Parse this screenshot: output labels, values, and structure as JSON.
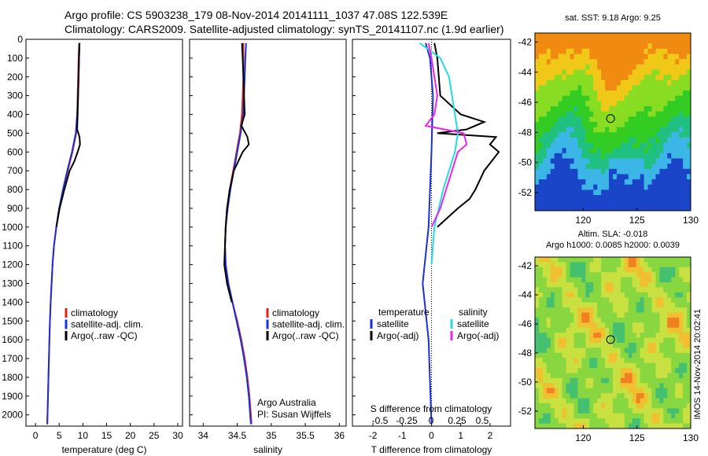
{
  "header": {
    "line1": "Argo profile: CS 5903238_179 08-Nov-2014 20141111_1037 47.08S 122.539E",
    "line2": "Climatology: CARS2009. Satellite-adjusted climatology: synTS_20141107.nc (1.9d earlier)"
  },
  "colors": {
    "climatology": "#e02020",
    "satellite": "#1a2fd6",
    "argo": "#000000",
    "sal_sat": "#22dddd",
    "sal_argo": "#ee22ee"
  },
  "chart_data": [
    {
      "type": "line",
      "xlabel": "temperature (deg C)",
      "ylim": [
        2060,
        0
      ],
      "xlim": [
        -2,
        31
      ],
      "xticks": [
        0,
        5,
        10,
        15,
        20,
        25,
        30
      ],
      "yticks": [
        0,
        100,
        200,
        300,
        400,
        500,
        600,
        700,
        800,
        900,
        1000,
        1100,
        1200,
        1300,
        1400,
        1500,
        1600,
        1700,
        1800,
        1900,
        2000
      ],
      "legend": [
        "climatology",
        "satellite-adj. clim.",
        "Argo(..raw -QC)"
      ],
      "series": [
        {
          "name": "climatology",
          "color": "#e02020",
          "depth": [
            20,
            100,
            200,
            300,
            400,
            500,
            600,
            700,
            800,
            900,
            1000,
            1100,
            1200,
            1300,
            1400,
            1500,
            1600,
            1700,
            1800,
            1900,
            2000,
            2050
          ],
          "values": [
            9.2,
            9.1,
            9.0,
            8.9,
            8.8,
            8.6,
            7.8,
            6.8,
            5.9,
            5.0,
            4.4,
            3.9,
            3.6,
            3.4,
            3.2,
            3.05,
            2.95,
            2.85,
            2.75,
            2.65,
            2.55,
            2.5
          ]
        },
        {
          "name": "satellite-adj. clim.",
          "color": "#1a2fd6",
          "depth": [
            20,
            100,
            200,
            300,
            400,
            500,
            600,
            700,
            800,
            900,
            1000,
            1100,
            1200,
            1300,
            1400,
            1500,
            1600,
            1700,
            1800,
            1900,
            2000,
            2050
          ],
          "values": [
            9.3,
            9.2,
            9.1,
            9.0,
            8.8,
            8.5,
            7.7,
            6.7,
            5.8,
            5.0,
            4.4,
            3.9,
            3.6,
            3.4,
            3.2,
            3.05,
            2.95,
            2.85,
            2.75,
            2.65,
            2.55,
            2.5
          ]
        },
        {
          "name": "Argo(..raw -QC)",
          "color": "#000000",
          "depth": [
            20,
            100,
            200,
            300,
            400,
            480,
            520,
            560,
            600,
            650,
            700,
            800,
            900,
            1000
          ],
          "values": [
            9.3,
            9.2,
            9.1,
            9.0,
            8.9,
            8.8,
            9.3,
            9.4,
            8.9,
            8.2,
            7.2,
            6.1,
            5.1,
            4.4
          ]
        }
      ]
    },
    {
      "type": "line",
      "xlabel": "salinity",
      "ylim": [
        2060,
        0
      ],
      "xlim": [
        33.8,
        36.1
      ],
      "xticks": [
        34,
        34.5,
        35,
        35.5,
        36
      ],
      "legend": [
        "climatology",
        "satellite-adj. clim.",
        "Argo(..raw -QC)"
      ],
      "annotation": [
        "Argo Australia",
        "PI: Susan Wijffels"
      ],
      "series": [
        {
          "name": "climatology",
          "color": "#e02020",
          "depth": [
            20,
            100,
            200,
            300,
            400,
            500,
            600,
            700,
            800,
            900,
            1000,
            1100,
            1200,
            1300,
            1400,
            1500,
            1600,
            1700,
            1800,
            1900,
            2000,
            2050
          ],
          "values": [
            34.59,
            34.59,
            34.59,
            34.58,
            34.57,
            34.54,
            34.49,
            34.44,
            34.39,
            34.35,
            34.33,
            34.32,
            34.33,
            34.37,
            34.43,
            34.5,
            34.56,
            34.61,
            34.65,
            34.68,
            34.7,
            34.71
          ]
        },
        {
          "name": "satellite-adj. clim.",
          "color": "#1a2fd6",
          "depth": [
            20,
            100,
            200,
            300,
            400,
            500,
            600,
            700,
            800,
            900,
            1000,
            1100,
            1200,
            1300,
            1400,
            1500,
            1600,
            1700,
            1800,
            1900,
            2000,
            2050
          ],
          "values": [
            34.63,
            34.62,
            34.61,
            34.6,
            34.59,
            34.55,
            34.5,
            34.45,
            34.4,
            34.36,
            34.33,
            34.32,
            34.33,
            34.37,
            34.43,
            34.49,
            34.55,
            34.6,
            34.64,
            34.67,
            34.69,
            34.7
          ]
        },
        {
          "name": "Argo(..raw -QC)",
          "color": "#000000",
          "depth": [
            20,
            100,
            200,
            300,
            400,
            460,
            520,
            560,
            600,
            700,
            800,
            900,
            1000,
            1200,
            1300,
            1400
          ],
          "values": [
            34.57,
            34.58,
            34.59,
            34.6,
            34.61,
            34.56,
            34.65,
            34.67,
            34.58,
            34.45,
            34.39,
            34.35,
            34.33,
            34.31,
            34.35,
            34.42
          ]
        }
      ]
    },
    {
      "type": "line",
      "xlabel": "T difference from climatology",
      "toplabel": "S difference from climatology",
      "ylim": [
        2060,
        0
      ],
      "xlim": [
        -2.7,
        2.7
      ],
      "xticks": [
        -2,
        -1,
        0,
        1,
        2
      ],
      "xticks_top": [
        "-0.5",
        "-0.25",
        "0",
        "0.25",
        "0.5"
      ],
      "legend_temperature": [
        "temperature",
        "satellite",
        "Argo(-adj)"
      ],
      "legend_salinity": [
        "salinity",
        "satellite",
        "Argo(-adj)"
      ],
      "series": [
        {
          "name": "satellite",
          "color": "#1a2fd6",
          "depth": [
            20,
            100,
            300,
            600,
            1000,
            1300,
            1600,
            2050
          ],
          "values": [
            -0.2,
            -0.05,
            0.05,
            0.0,
            -0.1,
            -0.3,
            -0.1,
            0.0
          ]
        },
        {
          "name": "Argo(-adj)",
          "color": "#000000",
          "depth": [
            20,
            100,
            300,
            400,
            440,
            480,
            500,
            520,
            560,
            600,
            700,
            800,
            850,
            900,
            1000
          ],
          "values": [
            0.1,
            0.2,
            0.3,
            1.0,
            1.8,
            1.2,
            0.2,
            2.2,
            2.0,
            2.3,
            1.8,
            1.5,
            1.3,
            0.9,
            0.2
          ]
        },
        {
          "name": "satellite",
          "color": "#22dddd",
          "depth": [
            20,
            100,
            200,
            300,
            400,
            500,
            600,
            700,
            800,
            1000,
            1200
          ],
          "values": [
            -0.4,
            0.3,
            0.6,
            0.7,
            0.8,
            0.9,
            0.8,
            0.6,
            0.4,
            0.1,
            0.0
          ]
        },
        {
          "name": "Argo(-adj)",
          "color": "#ee22ee",
          "depth": [
            20,
            100,
            200,
            300,
            400,
            460,
            500,
            560,
            600,
            700,
            800,
            900,
            1000
          ],
          "values": [
            -0.1,
            0.0,
            0.1,
            0.2,
            0.1,
            -0.2,
            1.1,
            1.2,
            0.9,
            0.7,
            0.5,
            0.3,
            0.0
          ]
        }
      ]
    },
    {
      "type": "heatmap",
      "title": "sat. SST: 9.18 Argo: 9.25",
      "xticks": [
        120,
        125,
        130
      ],
      "yticks": [
        -42,
        -44,
        -46,
        -48,
        -50,
        -52
      ],
      "xlim": [
        115.5,
        130
      ],
      "ylim": [
        -53.2,
        -41.4
      ],
      "marker": [
        122.54,
        -47.08
      ]
    },
    {
      "type": "heatmap",
      "title": "Altim. SLA: -0.018",
      "subtitle": "Argo h1000: 0.0085 h2000: 0.0039",
      "xticks": [
        120,
        125,
        130
      ],
      "yticks": [
        -42,
        -44,
        -46,
        -48,
        -50,
        -52
      ],
      "xlim": [
        115.5,
        130
      ],
      "ylim": [
        -53.2,
        -41.4
      ],
      "marker": [
        122.54,
        -47.08
      ]
    }
  ],
  "side_label": "IMOS 14-Nov-2014 20:02:41"
}
